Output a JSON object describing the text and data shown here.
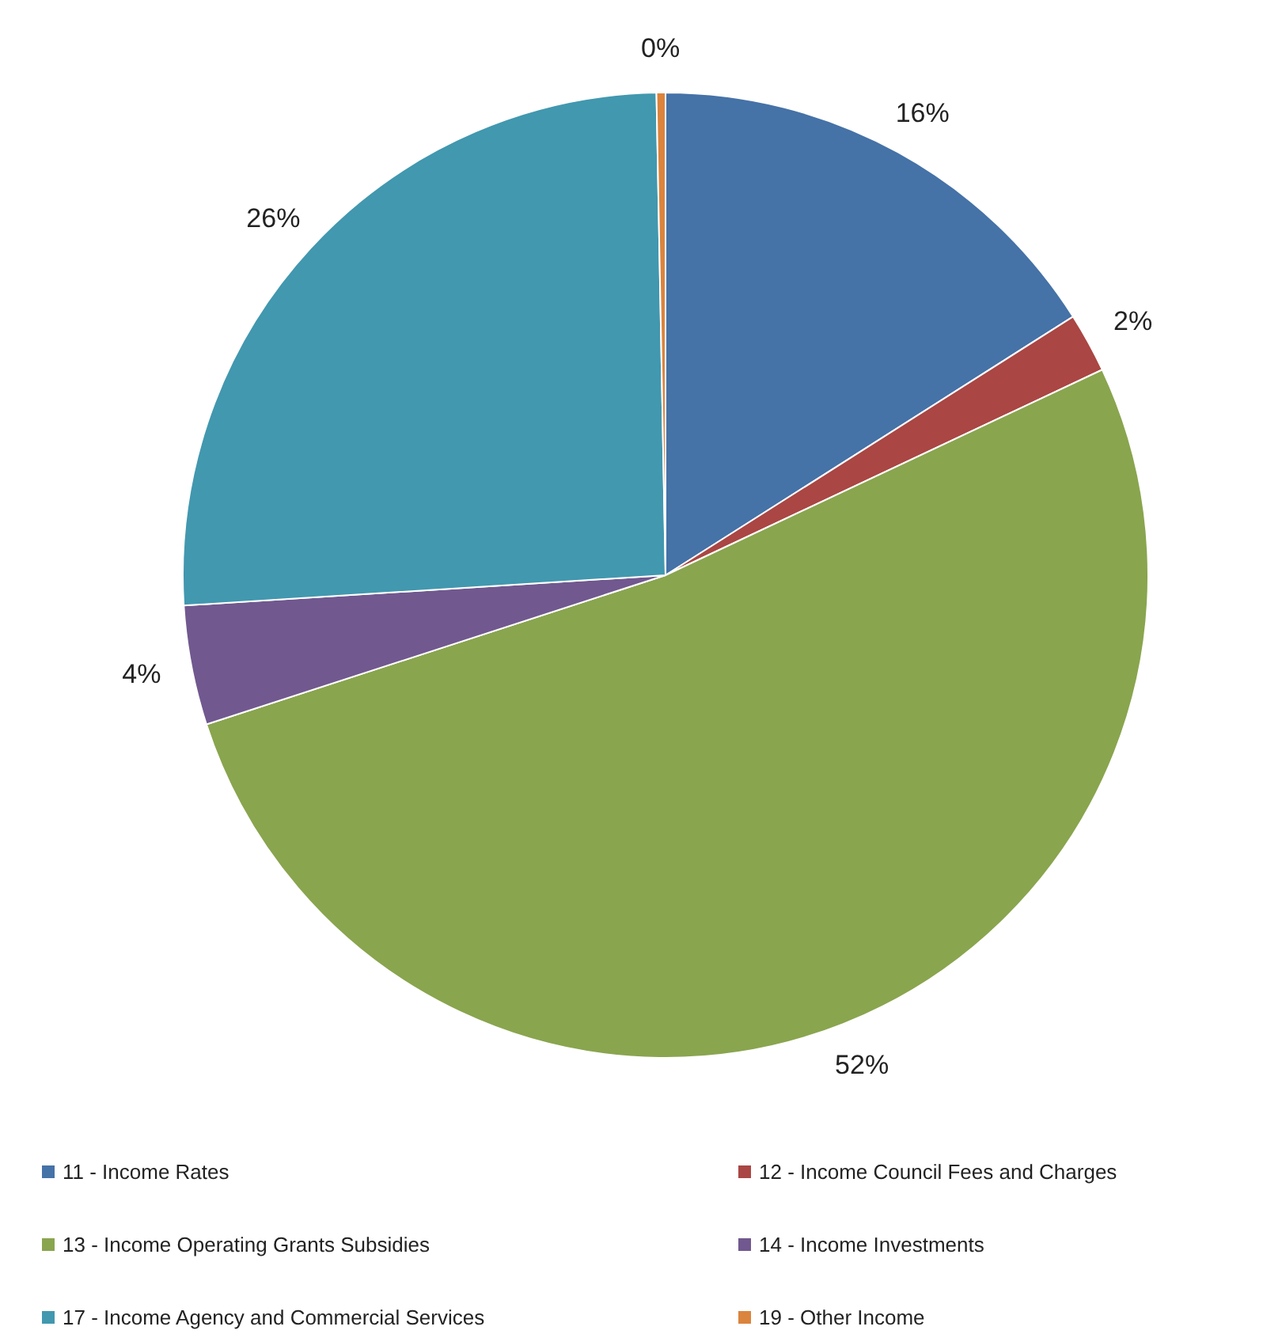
{
  "chart_data": {
    "type": "pie",
    "categories": [
      "11 - Income Rates",
      "12 - Income Council Fees and Charges",
      "13 - Income Operating Grants Subsidies",
      "14 - Income Investments",
      "17 - Income Agency and Commercial Services",
      "19 - Other Income"
    ],
    "values": [
      16,
      2,
      52,
      4,
      25.7,
      0.3
    ],
    "value_labels": [
      "16%",
      "2%",
      "52%",
      "4%",
      "26%",
      "0%"
    ],
    "colors": [
      "#4572a7",
      "#aa4643",
      "#89a54e",
      "#71588f",
      "#4198af",
      "#db843d"
    ],
    "legend": "bottom"
  }
}
